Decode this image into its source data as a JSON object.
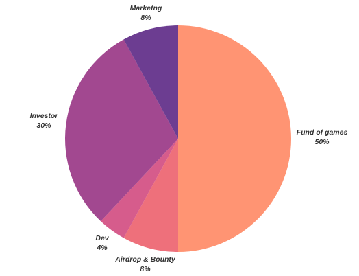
{
  "chart_data": {
    "type": "pie",
    "start_angle_deg": 0,
    "direction": "clockwise",
    "slices": [
      {
        "label": "Fund of games",
        "value": 50,
        "value_label": "50%",
        "color": "#ff9473"
      },
      {
        "label": "Airdrop & Bounty",
        "value": 8,
        "value_label": "8%",
        "color": "#ee707b"
      },
      {
        "label": "Dev",
        "value": 4,
        "value_label": "4%",
        "color": "#d65c8c"
      },
      {
        "label": "Investor",
        "value": 30,
        "value_label": "30%",
        "color": "#a24890"
      },
      {
        "label": "Marketng",
        "value": 8,
        "value_label": "8%",
        "color": "#6c3d91"
      }
    ],
    "legend": "none"
  }
}
